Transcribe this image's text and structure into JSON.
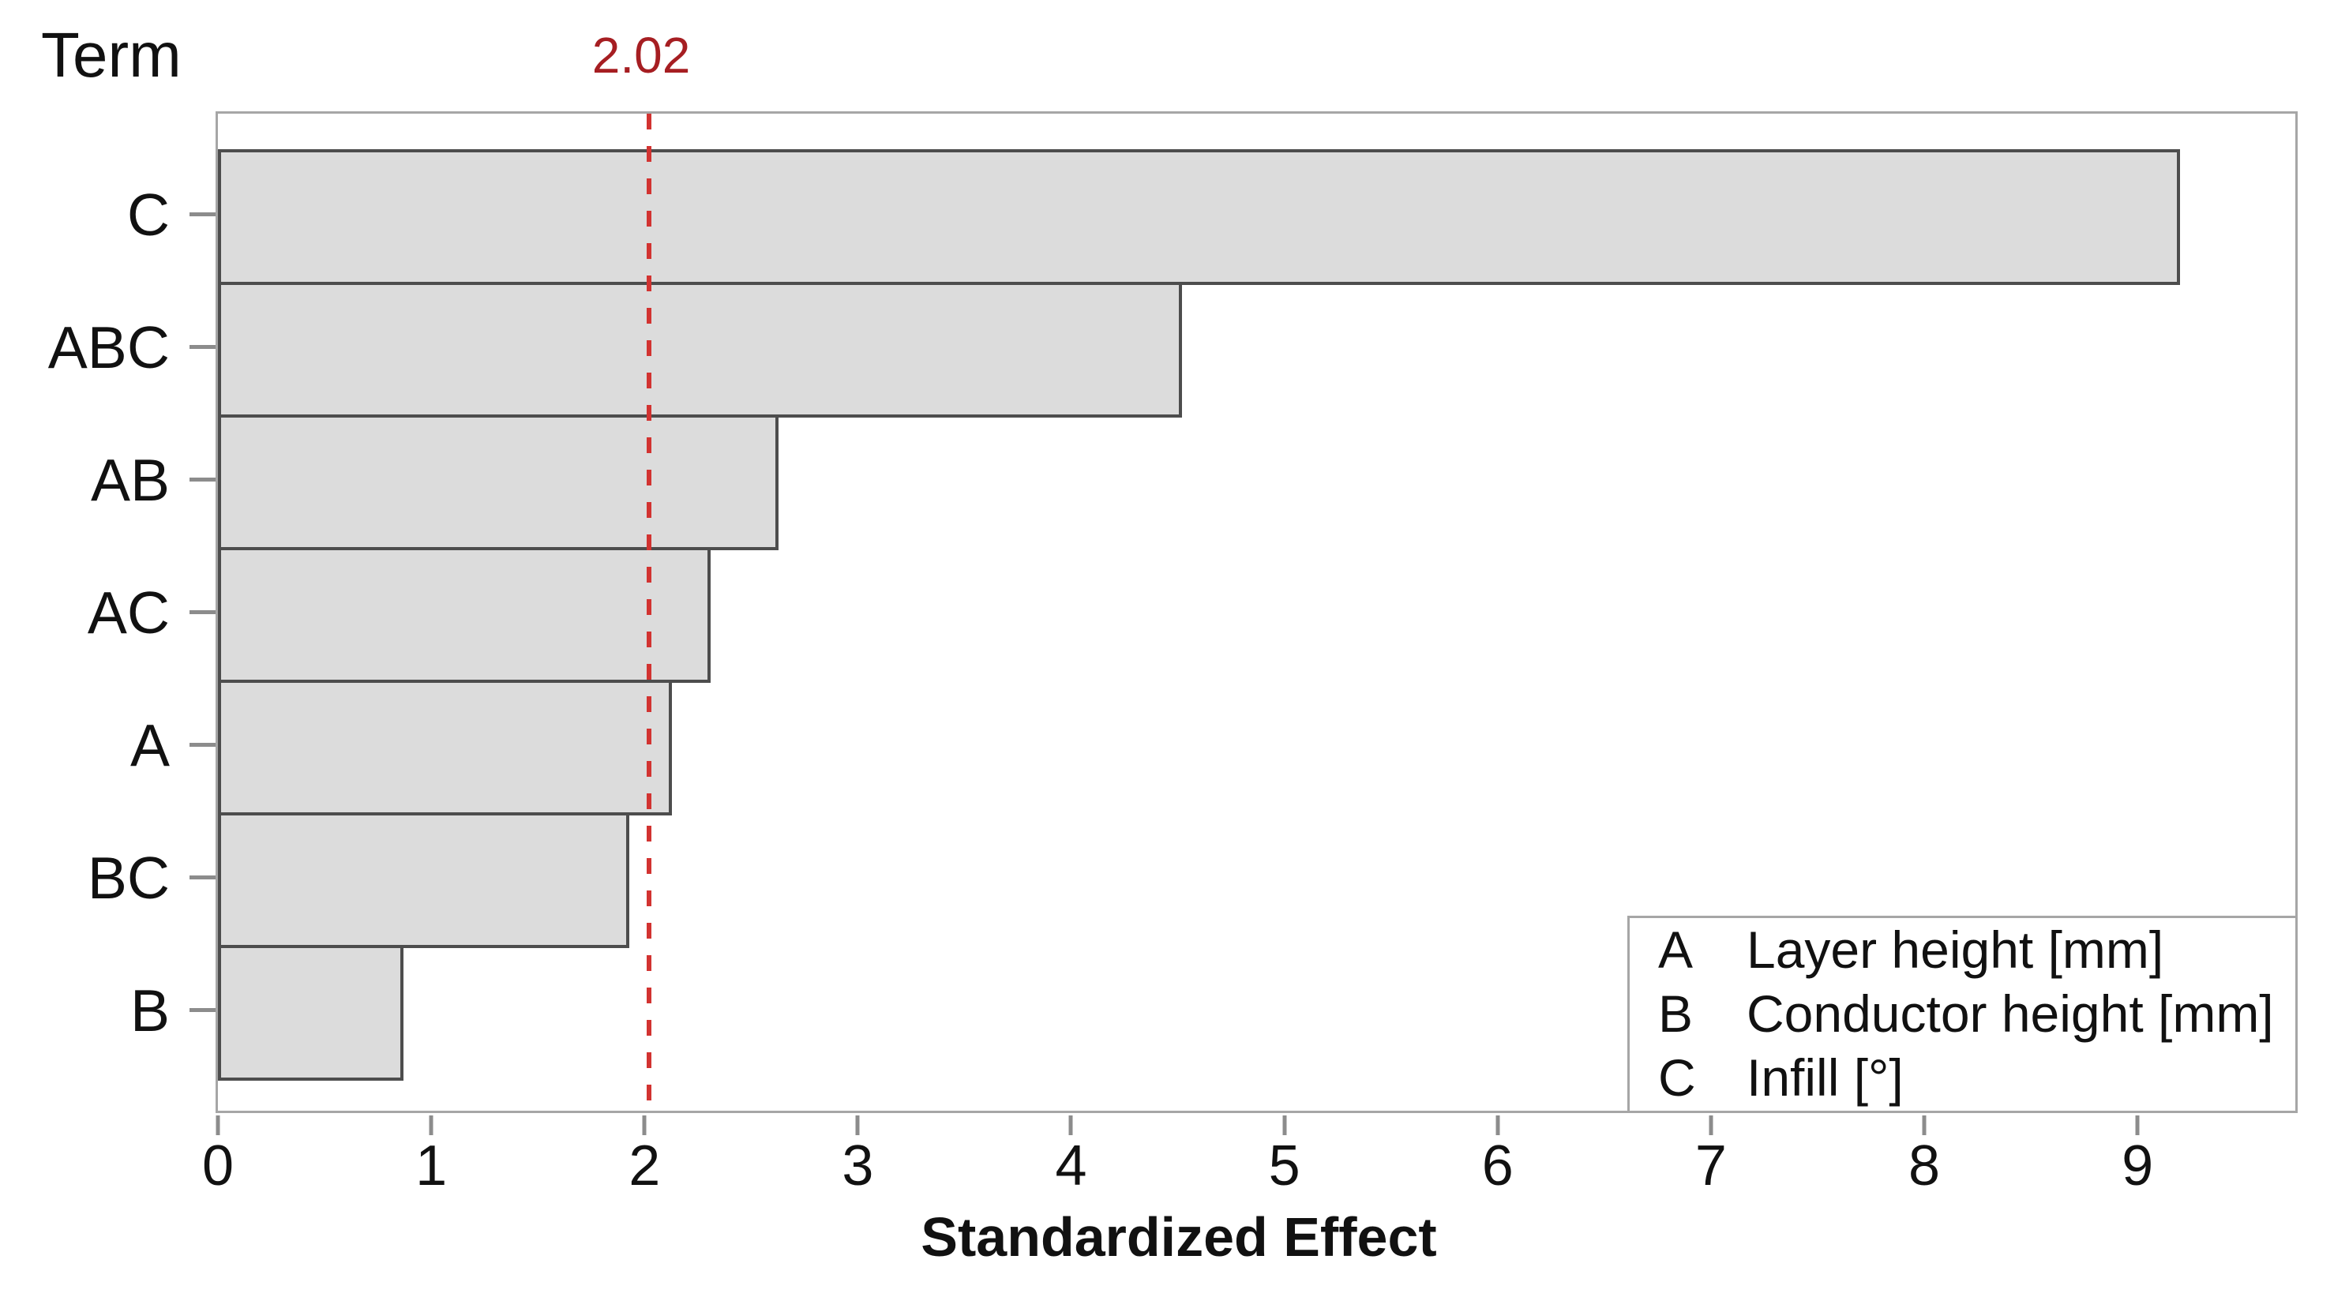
{
  "y_axis_title": "Term",
  "x_axis_title": "Standardized Effect",
  "reference": {
    "label": "2.02",
    "value": 2.02
  },
  "chart_data": {
    "type": "bar",
    "orientation": "horizontal",
    "categories": [
      "C",
      "ABC",
      "AB",
      "AC",
      "A",
      "BC",
      "B"
    ],
    "values": [
      9.2,
      4.52,
      2.63,
      2.31,
      2.13,
      1.93,
      0.87
    ],
    "xlabel": "Standardized Effect",
    "ylabel": "Term",
    "xlim": [
      0,
      9.74
    ],
    "x_ticks": [
      0,
      1,
      2,
      3,
      4,
      5,
      6,
      7,
      8,
      9
    ],
    "reference_line": 2.02,
    "grid": false,
    "legend_position": "bottom-right",
    "bar_fill": "#dcdcdc",
    "bar_border": "#4d4d4d"
  },
  "legend": {
    "items": [
      {
        "key": "A",
        "label": "Layer height [mm]"
      },
      {
        "key": "B",
        "label": "Conductor height [mm]"
      },
      {
        "key": "C",
        "label": "Infill [°]"
      }
    ]
  },
  "colors": {
    "reference_line": "#d23331",
    "reference_label": "#a61e22",
    "plot_border": "#a6a6a6",
    "tick": "#8c8c8c",
    "bar_fill": "#dcdcdc",
    "bar_border": "#4d4d4d",
    "text": "#111111"
  }
}
